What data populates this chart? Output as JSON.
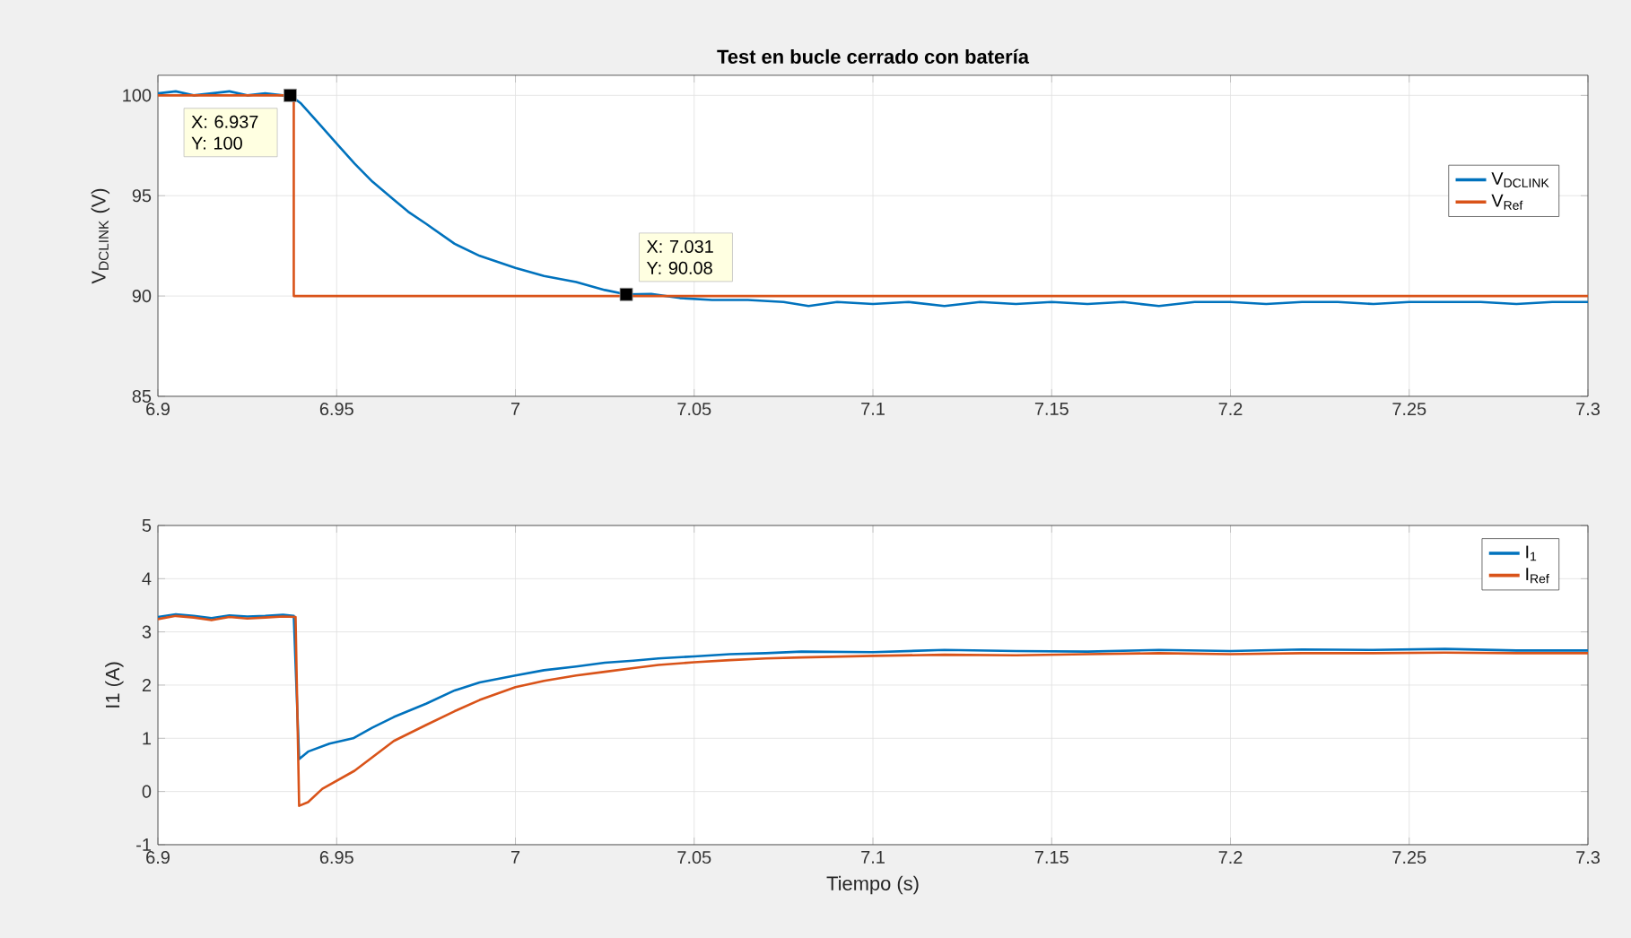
{
  "chart_data": [
    {
      "type": "line",
      "title": "Test en bucle cerrado con batería",
      "ylabel": "V$_{DCLINK}$ (V)",
      "xlim": [
        6.9,
        7.3
      ],
      "xticks": [
        6.9,
        6.95,
        7,
        7.05,
        7.1,
        7.15,
        7.2,
        7.25,
        7.3
      ],
      "ylim": [
        85,
        101
      ],
      "yticks": [
        85,
        90,
        95,
        100
      ],
      "grid": true,
      "legend": "right",
      "series": [
        {
          "name": "V$_{DCLINK}$",
          "color": "#0072bd",
          "x": [
            6.9,
            6.905,
            6.91,
            6.915,
            6.92,
            6.925,
            6.93,
            6.935,
            6.937,
            6.94,
            6.945,
            6.95,
            6.955,
            6.96,
            6.966,
            6.97,
            6.975,
            6.983,
            6.99,
            7.0,
            7.008,
            7.017,
            7.025,
            7.031,
            7.038,
            7.046,
            7.055,
            7.065,
            7.075,
            7.082,
            7.09,
            7.1,
            7.11,
            7.12,
            7.13,
            7.14,
            7.15,
            7.16,
            7.17,
            7.18,
            7.19,
            7.2,
            7.21,
            7.22,
            7.23,
            7.24,
            7.25,
            7.26,
            7.27,
            7.28,
            7.29,
            7.3
          ],
          "values": [
            100.1,
            100.2,
            100.0,
            100.1,
            100.2,
            100.0,
            100.1,
            100.0,
            100,
            99.6,
            98.6,
            97.6,
            96.6,
            95.7,
            94.8,
            94.2,
            93.6,
            92.6,
            92.0,
            91.4,
            91.0,
            90.7,
            90.3,
            90.08,
            90.1,
            89.9,
            89.8,
            89.8,
            89.7,
            89.5,
            89.7,
            89.6,
            89.7,
            89.5,
            89.7,
            89.6,
            89.7,
            89.6,
            89.7,
            89.5,
            89.7,
            89.7,
            89.6,
            89.7,
            89.7,
            89.6,
            89.7,
            89.7,
            89.7,
            89.6,
            89.7,
            89.7
          ]
        },
        {
          "name": "V$_{Ref}$",
          "color": "#d95319",
          "x": [
            6.9,
            6.938,
            6.938,
            7.3
          ],
          "values": [
            100,
            100,
            90,
            90
          ]
        }
      ],
      "annotations": [
        {
          "text": "X: 6.937 Y: 100",
          "x": 6.937,
          "y": 100
        },
        {
          "text": "X: 7.031 Y: 90.08",
          "x": 7.031,
          "y": 90.08
        }
      ]
    },
    {
      "type": "line",
      "xlabel": "Tiempo (s)",
      "ylabel": "I1 (A)",
      "xlim": [
        6.9,
        7.3
      ],
      "xticks": [
        6.9,
        6.95,
        7,
        7.05,
        7.1,
        7.15,
        7.2,
        7.25,
        7.3
      ],
      "ylim": [
        -1,
        5
      ],
      "yticks": [
        -1,
        0,
        1,
        2,
        3,
        4,
        5
      ],
      "grid": true,
      "legend": "top right",
      "series": [
        {
          "name": "I$_{1}$",
          "color": "#0072bd",
          "x": [
            6.9,
            6.905,
            6.91,
            6.915,
            6.92,
            6.925,
            6.93,
            6.935,
            6.938,
            6.9395,
            6.942,
            6.948,
            6.9546,
            6.96,
            6.966,
            6.975,
            6.983,
            6.99,
            7.0,
            7.008,
            7.017,
            7.025,
            7.033,
            7.04,
            7.05,
            7.06,
            7.07,
            7.08,
            7.1,
            7.12,
            7.14,
            7.16,
            7.18,
            7.2,
            7.22,
            7.24,
            7.26,
            7.28,
            7.3
          ],
          "values": [
            3.28,
            3.33,
            3.3,
            3.26,
            3.31,
            3.29,
            3.3,
            3.32,
            3.3,
            0.61,
            0.75,
            0.9,
            1.0,
            1.2,
            1.4,
            1.65,
            1.9,
            2.05,
            2.18,
            2.28,
            2.35,
            2.42,
            2.46,
            2.5,
            2.54,
            2.58,
            2.6,
            2.63,
            2.62,
            2.66,
            2.64,
            2.63,
            2.66,
            2.64,
            2.67,
            2.66,
            2.68,
            2.65,
            2.65
          ]
        },
        {
          "name": "I$_{Ref}$",
          "color": "#d95319",
          "x": [
            6.9,
            6.905,
            6.91,
            6.915,
            6.92,
            6.925,
            6.93,
            6.935,
            6.9385,
            6.9395,
            6.942,
            6.946,
            6.955,
            6.966,
            6.975,
            6.983,
            6.99,
            7.0,
            7.008,
            7.017,
            7.025,
            7.033,
            7.04,
            7.05,
            7.06,
            7.07,
            7.08,
            7.1,
            7.12,
            7.14,
            7.16,
            7.18,
            7.2,
            7.22,
            7.24,
            7.26,
            7.28,
            7.3
          ],
          "values": [
            3.24,
            3.3,
            3.27,
            3.22,
            3.28,
            3.25,
            3.27,
            3.29,
            3.28,
            -0.27,
            -0.2,
            0.05,
            0.39,
            0.95,
            1.25,
            1.51,
            1.72,
            1.96,
            2.08,
            2.18,
            2.25,
            2.32,
            2.38,
            2.43,
            2.47,
            2.5,
            2.52,
            2.55,
            2.57,
            2.56,
            2.58,
            2.6,
            2.58,
            2.6,
            2.6,
            2.61,
            2.6,
            2.6
          ]
        }
      ]
    }
  ]
}
